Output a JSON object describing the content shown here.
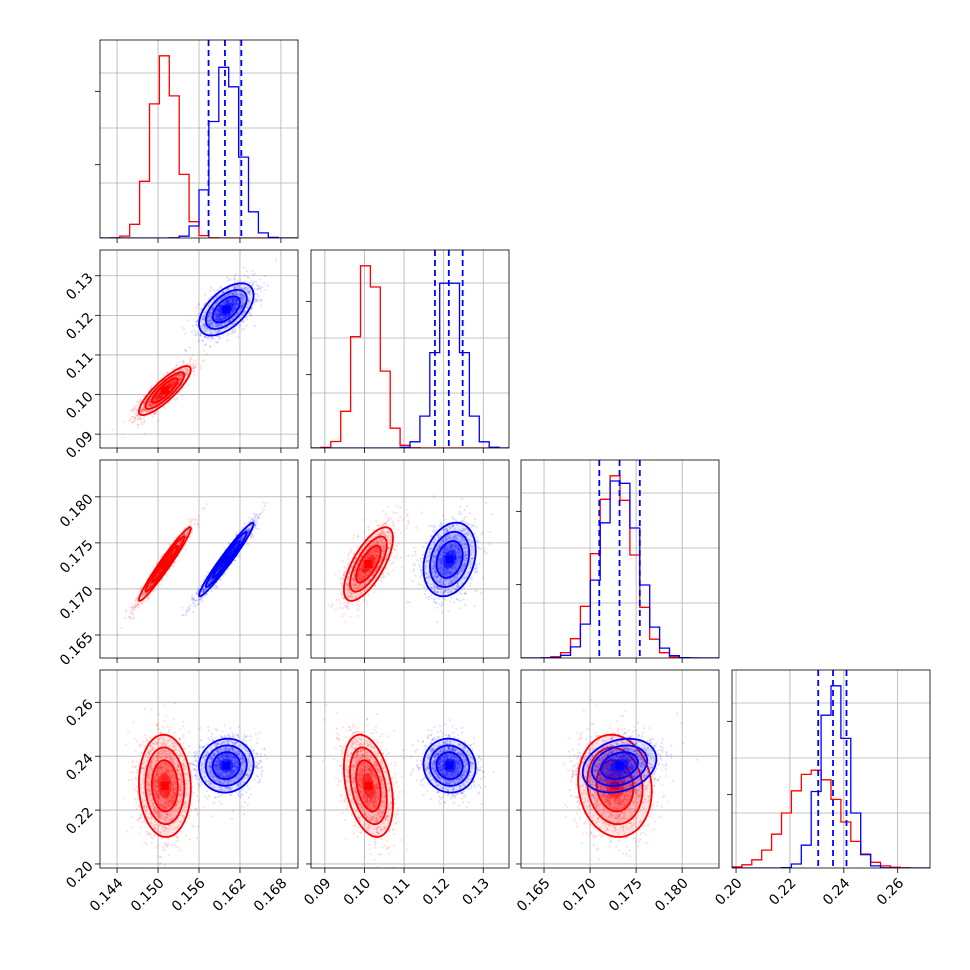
{
  "chart_data": {
    "type": "scatter",
    "title": "",
    "grid": true,
    "parameters": [
      {
        "id": "p0",
        "range": [
          0.1415,
          0.1705
        ],
        "ticks": [
          "0.144",
          "0.150",
          "0.156",
          "0.162",
          "0.168"
        ],
        "tick_values": [
          0.144,
          0.15,
          0.156,
          0.162,
          0.168
        ]
      },
      {
        "id": "p1",
        "range": [
          0.0865,
          0.1365
        ],
        "ticks": [
          "0.09",
          "0.10",
          "0.11",
          "0.12",
          "0.13"
        ],
        "tick_values": [
          0.09,
          0.1,
          0.11,
          0.12,
          0.13
        ]
      },
      {
        "id": "p2",
        "range": [
          0.1625,
          0.184
        ],
        "ticks": [
          "0.165",
          "0.170",
          "0.175",
          "0.180"
        ],
        "tick_values": [
          0.165,
          0.17,
          0.175,
          0.18
        ]
      },
      {
        "id": "p3",
        "range": [
          0.1985,
          0.272
        ],
        "ticks": [
          "0.20",
          "0.22",
          "0.24",
          "0.26"
        ],
        "tick_values": [
          0.2,
          0.22,
          0.24,
          0.26
        ]
      }
    ],
    "series": [
      {
        "color": "#ff0000",
        "mean": [
          0.151,
          0.101,
          0.1727,
          0.229
        ],
        "std": [
          0.0019,
          0.0031,
          0.002,
          0.0095
        ],
        "correlation": [
          [
            1.0,
            0.85,
            0.97,
            -0.05
          ],
          [
            0.85,
            1.0,
            0.7,
            -0.35
          ],
          [
            0.97,
            0.7,
            1.0,
            -0.1
          ],
          [
            -0.05,
            -0.35,
            -0.1,
            1.0
          ]
        ],
        "quantile_lines": false
      },
      {
        "color": "#0000ff",
        "mean": [
          0.16,
          0.1215,
          0.1732,
          0.2365
        ],
        "std": [
          0.002,
          0.0033,
          0.002,
          0.005
        ],
        "correlation": [
          [
            1.0,
            0.55,
            0.97,
            0.05
          ],
          [
            0.55,
            1.0,
            0.25,
            -0.05
          ],
          [
            0.97,
            0.25,
            1.0,
            0.25
          ],
          [
            0.05,
            -0.05,
            0.25,
            1.0
          ]
        ],
        "quantile_lines": true,
        "quantiles": [
          [
            0.1574,
            0.1598,
            0.1622
          ],
          [
            0.1178,
            0.1213,
            0.1248
          ],
          [
            0.171,
            0.1732,
            0.1754
          ],
          [
            0.2305,
            0.236,
            0.241
          ]
        ]
      }
    ]
  }
}
